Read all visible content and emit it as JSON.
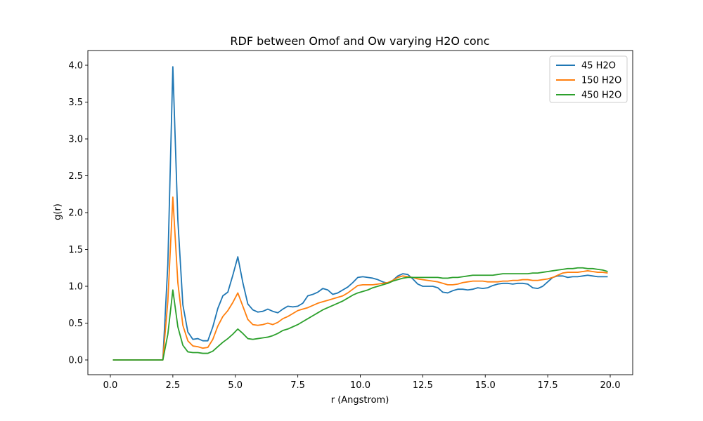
{
  "chart_data": {
    "type": "line",
    "title": "RDF between Omof and Ow varying H2O conc",
    "xlabel": "r (Angstrom)",
    "ylabel": "g(r)",
    "xlim": [
      -0.9,
      20.9
    ],
    "ylim": [
      -0.2,
      4.2
    ],
    "xticks": [
      0.0,
      2.5,
      5.0,
      7.5,
      10.0,
      12.5,
      15.0,
      17.5,
      20.0
    ],
    "yticks": [
      0.0,
      0.5,
      1.0,
      1.5,
      2.0,
      2.5,
      3.0,
      3.5,
      4.0
    ],
    "legend_position": "top-right",
    "grid": false,
    "x": [
      0.1,
      0.3,
      0.5,
      0.7,
      0.9,
      1.1,
      1.3,
      1.5,
      1.7,
      1.9,
      2.1,
      2.3,
      2.5,
      2.7,
      2.9,
      3.1,
      3.3,
      3.5,
      3.7,
      3.9,
      4.1,
      4.3,
      4.5,
      4.7,
      4.9,
      5.1,
      5.3,
      5.5,
      5.7,
      5.9,
      6.1,
      6.3,
      6.5,
      6.7,
      6.9,
      7.1,
      7.3,
      7.5,
      7.7,
      7.9,
      8.1,
      8.3,
      8.5,
      8.7,
      8.9,
      9.1,
      9.3,
      9.5,
      9.7,
      9.9,
      10.1,
      10.3,
      10.5,
      10.7,
      10.9,
      11.1,
      11.3,
      11.5,
      11.7,
      11.9,
      12.1,
      12.3,
      12.5,
      12.7,
      12.9,
      13.1,
      13.3,
      13.5,
      13.7,
      13.9,
      14.1,
      14.3,
      14.5,
      14.7,
      14.9,
      15.1,
      15.3,
      15.5,
      15.7,
      15.9,
      16.1,
      16.3,
      16.5,
      16.7,
      16.9,
      17.1,
      17.3,
      17.5,
      17.7,
      17.9,
      18.1,
      18.3,
      18.5,
      18.7,
      18.9,
      19.1,
      19.3,
      19.5,
      19.7,
      19.9
    ],
    "series": [
      {
        "name": "45 H2O",
        "color": "#1f77b4",
        "values": [
          0,
          0,
          0,
          0,
          0,
          0,
          0,
          0,
          0,
          0,
          0,
          1.3,
          3.98,
          1.9,
          0.75,
          0.38,
          0.28,
          0.29,
          0.26,
          0.26,
          0.45,
          0.7,
          0.87,
          0.92,
          1.15,
          1.4,
          1.05,
          0.76,
          0.68,
          0.65,
          0.66,
          0.69,
          0.66,
          0.64,
          0.69,
          0.73,
          0.72,
          0.73,
          0.77,
          0.87,
          0.89,
          0.92,
          0.97,
          0.95,
          0.89,
          0.91,
          0.95,
          0.99,
          1.05,
          1.12,
          1.13,
          1.12,
          1.11,
          1.09,
          1.06,
          1.04,
          1.08,
          1.14,
          1.17,
          1.16,
          1.1,
          1.03,
          1.0,
          1.0,
          1.0,
          0.98,
          0.92,
          0.91,
          0.94,
          0.96,
          0.96,
          0.95,
          0.96,
          0.98,
          0.97,
          0.98,
          1.01,
          1.03,
          1.04,
          1.04,
          1.03,
          1.04,
          1.04,
          1.03,
          0.98,
          0.97,
          1.0,
          1.06,
          1.12,
          1.14,
          1.14,
          1.12,
          1.13,
          1.13,
          1.14,
          1.15,
          1.14,
          1.13,
          1.13,
          1.13
        ]
      },
      {
        "name": "150 H2O",
        "color": "#ff7f0e",
        "values": [
          0,
          0,
          0,
          0,
          0,
          0,
          0,
          0,
          0,
          0,
          0,
          0.8,
          2.21,
          1.05,
          0.47,
          0.26,
          0.19,
          0.18,
          0.16,
          0.17,
          0.28,
          0.46,
          0.59,
          0.67,
          0.78,
          0.91,
          0.73,
          0.55,
          0.48,
          0.47,
          0.48,
          0.5,
          0.48,
          0.51,
          0.56,
          0.59,
          0.63,
          0.67,
          0.69,
          0.71,
          0.74,
          0.77,
          0.79,
          0.81,
          0.83,
          0.85,
          0.87,
          0.91,
          0.96,
          1.01,
          1.02,
          1.02,
          1.02,
          1.03,
          1.04,
          1.05,
          1.08,
          1.12,
          1.14,
          1.13,
          1.12,
          1.1,
          1.09,
          1.08,
          1.07,
          1.06,
          1.04,
          1.02,
          1.02,
          1.03,
          1.05,
          1.06,
          1.07,
          1.07,
          1.07,
          1.06,
          1.06,
          1.06,
          1.07,
          1.07,
          1.08,
          1.08,
          1.09,
          1.09,
          1.08,
          1.08,
          1.09,
          1.1,
          1.12,
          1.15,
          1.18,
          1.19,
          1.19,
          1.19,
          1.2,
          1.21,
          1.2,
          1.19,
          1.19,
          1.18
        ]
      },
      {
        "name": "450 H2O",
        "color": "#2ca02c",
        "values": [
          0,
          0,
          0,
          0,
          0,
          0,
          0,
          0,
          0,
          0,
          0,
          0.35,
          0.95,
          0.45,
          0.2,
          0.11,
          0.1,
          0.1,
          0.09,
          0.09,
          0.12,
          0.18,
          0.24,
          0.29,
          0.35,
          0.42,
          0.36,
          0.29,
          0.28,
          0.29,
          0.3,
          0.31,
          0.33,
          0.36,
          0.4,
          0.42,
          0.45,
          0.48,
          0.52,
          0.56,
          0.6,
          0.64,
          0.68,
          0.71,
          0.74,
          0.77,
          0.8,
          0.84,
          0.88,
          0.91,
          0.93,
          0.95,
          0.98,
          1.0,
          1.02,
          1.04,
          1.07,
          1.09,
          1.11,
          1.12,
          1.12,
          1.12,
          1.12,
          1.12,
          1.12,
          1.12,
          1.11,
          1.11,
          1.12,
          1.12,
          1.13,
          1.14,
          1.15,
          1.15,
          1.15,
          1.15,
          1.15,
          1.16,
          1.17,
          1.17,
          1.17,
          1.17,
          1.17,
          1.17,
          1.18,
          1.18,
          1.19,
          1.2,
          1.21,
          1.22,
          1.23,
          1.24,
          1.24,
          1.25,
          1.25,
          1.24,
          1.24,
          1.23,
          1.22,
          1.2
        ]
      }
    ]
  }
}
